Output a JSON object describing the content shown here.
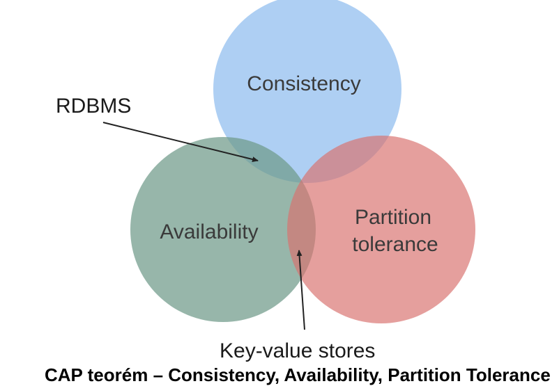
{
  "diagram": {
    "sets": {
      "consistency": {
        "label": "Consistency",
        "color": "#8fbcef"
      },
      "availability": {
        "label": "Availability",
        "color": "#6f9a89"
      },
      "partition": {
        "label_line1": "Partition",
        "label_line2": "tolerance",
        "color": "#d9726f"
      }
    },
    "annotations": {
      "rdbms": "RDBMS",
      "key_value": "Key-value stores"
    },
    "caption": "CAP teorém – Consistency, Availability, Partition Tolerance"
  }
}
